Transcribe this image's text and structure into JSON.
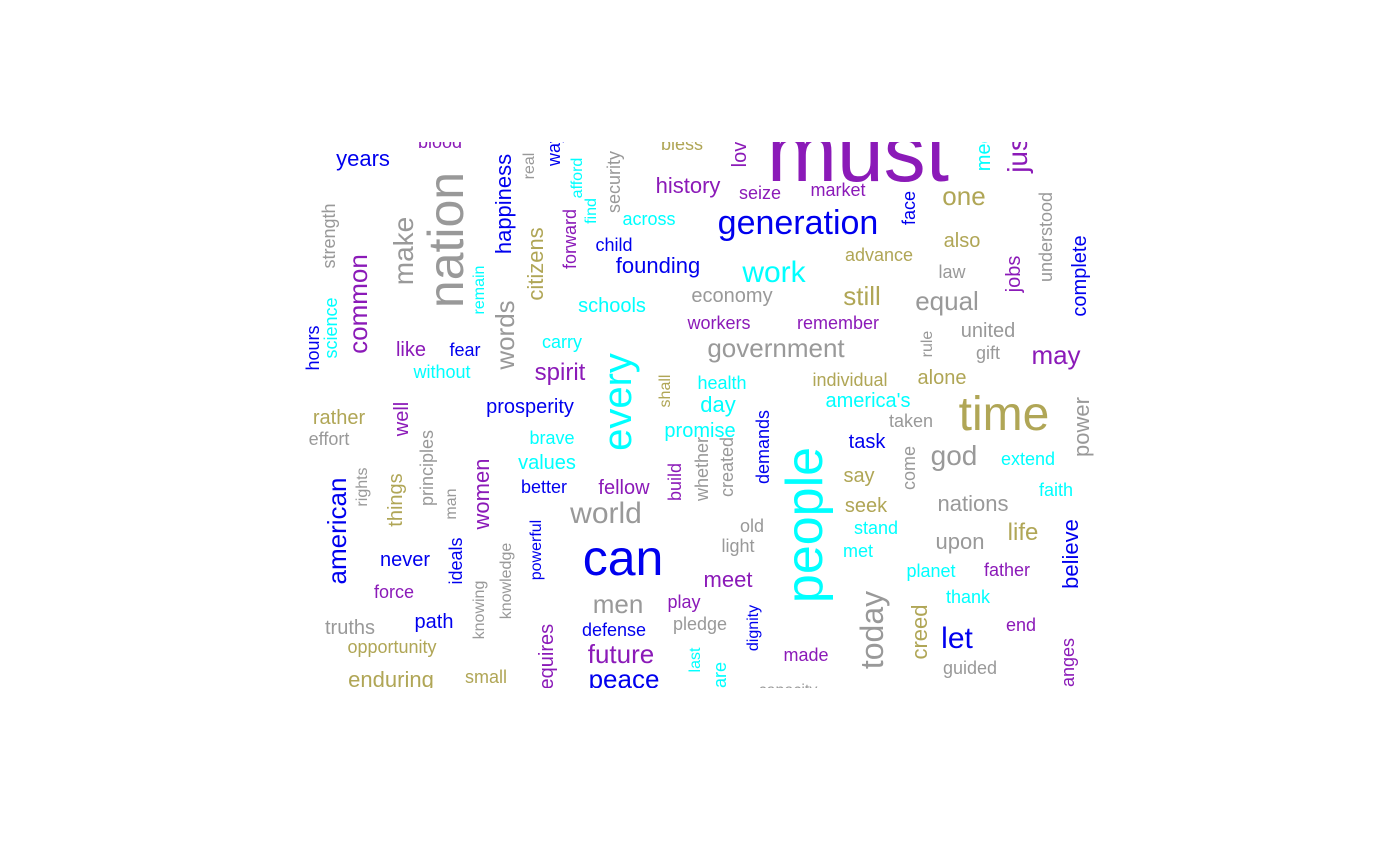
{
  "colors": {
    "blue": "#0000ee",
    "purple": "#8b1ab8",
    "cyan": "#00ffff",
    "olive": "#b0a656",
    "gray": "#999999"
  },
  "words": [
    {
      "text": "must",
      "color": "purple",
      "rotated": false
    },
    {
      "text": "can",
      "color": "blue",
      "rotated": false
    },
    {
      "text": "people",
      "color": "cyan",
      "rotated": true
    },
    {
      "text": "nation",
      "color": "gray",
      "rotated": true
    },
    {
      "text": "time",
      "color": "olive",
      "rotated": false
    },
    {
      "text": "every",
      "color": "cyan",
      "rotated": true
    },
    {
      "text": "generation",
      "color": "blue",
      "rotated": false
    },
    {
      "text": "work",
      "color": "cyan",
      "rotated": false
    },
    {
      "text": "world",
      "color": "gray",
      "rotated": false
    },
    {
      "text": "government",
      "color": "gray",
      "rotated": false
    },
    {
      "text": "today",
      "color": "gray",
      "rotated": true
    },
    {
      "text": "american",
      "color": "blue",
      "rotated": true
    },
    {
      "text": "make",
      "color": "gray",
      "rotated": true
    },
    {
      "text": "common",
      "color": "purple",
      "rotated": true
    },
    {
      "text": "one",
      "color": "olive",
      "rotated": false
    },
    {
      "text": "god",
      "color": "gray",
      "rotated": false
    },
    {
      "text": "future",
      "color": "purple",
      "rotated": false
    },
    {
      "text": "peace",
      "color": "blue",
      "rotated": false
    },
    {
      "text": "let",
      "color": "blue",
      "rotated": false
    },
    {
      "text": "words",
      "color": "gray",
      "rotated": true
    },
    {
      "text": "still",
      "color": "olive",
      "rotated": false
    },
    {
      "text": "equal",
      "color": "gray",
      "rotated": false
    },
    {
      "text": "may",
      "color": "purple",
      "rotated": false
    },
    {
      "text": "men",
      "color": "gray",
      "rotated": false
    },
    {
      "text": "years",
      "color": "blue",
      "rotated": false
    },
    {
      "text": "happiness",
      "color": "blue",
      "rotated": true
    },
    {
      "text": "citizens",
      "color": "olive",
      "rotated": true
    },
    {
      "text": "women",
      "color": "purple",
      "rotated": true
    },
    {
      "text": "spirit",
      "color": "purple",
      "rotated": false
    },
    {
      "text": "history",
      "color": "purple",
      "rotated": false
    },
    {
      "text": "founding",
      "color": "blue",
      "rotated": false
    },
    {
      "text": "nations",
      "color": "gray",
      "rotated": false
    },
    {
      "text": "life",
      "color": "olive",
      "rotated": false
    },
    {
      "text": "upon",
      "color": "gray",
      "rotated": false
    },
    {
      "text": "power",
      "color": "gray",
      "rotated": true
    },
    {
      "text": "believe",
      "color": "blue",
      "rotated": true
    },
    {
      "text": "complete",
      "color": "blue",
      "rotated": true
    },
    {
      "text": "things",
      "color": "olive",
      "rotated": true
    },
    {
      "text": "creed",
      "color": "olive",
      "rotated": true
    },
    {
      "text": "enduring",
      "color": "olive",
      "rotated": false
    },
    {
      "text": "meet",
      "color": "purple",
      "rotated": false
    },
    {
      "text": "day",
      "color": "cyan",
      "rotated": false
    },
    {
      "text": "prosperity",
      "color": "blue",
      "rotated": false
    },
    {
      "text": "promise",
      "color": "cyan",
      "rotated": false
    },
    {
      "text": "values",
      "color": "cyan",
      "rotated": false
    },
    {
      "text": "fellow",
      "color": "purple",
      "rotated": false
    },
    {
      "text": "america's",
      "color": "cyan",
      "rotated": false
    },
    {
      "text": "jobs",
      "color": "purple",
      "rotated": true
    },
    {
      "text": "well",
      "color": "purple",
      "rotated": true
    },
    {
      "text": "rather",
      "color": "olive",
      "rotated": false
    },
    {
      "text": "schools",
      "color": "cyan",
      "rotated": false
    },
    {
      "text": "also",
      "color": "olive",
      "rotated": false
    },
    {
      "text": "alone",
      "color": "olive",
      "rotated": false
    },
    {
      "text": "never",
      "color": "blue",
      "rotated": false
    },
    {
      "text": "path",
      "color": "blue",
      "rotated": false
    },
    {
      "text": "seek",
      "color": "olive",
      "rotated": false
    },
    {
      "text": "say",
      "color": "olive",
      "rotated": false
    },
    {
      "text": "task",
      "color": "blue",
      "rotated": false
    },
    {
      "text": "united",
      "color": "gray",
      "rotated": false
    },
    {
      "text": "economy",
      "color": "gray",
      "rotated": false
    },
    {
      "text": "advance",
      "color": "olive",
      "rotated": false
    },
    {
      "text": "across",
      "color": "cyan",
      "rotated": false
    },
    {
      "text": "carry",
      "color": "cyan",
      "rotated": false
    },
    {
      "text": "like",
      "color": "purple",
      "rotated": false
    },
    {
      "text": "fear",
      "color": "blue",
      "rotated": false
    },
    {
      "text": "without",
      "color": "cyan",
      "rotated": false
    },
    {
      "text": "brave",
      "color": "cyan",
      "rotated": false
    },
    {
      "text": "better",
      "color": "blue",
      "rotated": false
    },
    {
      "text": "health",
      "color": "cyan",
      "rotated": false
    },
    {
      "text": "individual",
      "color": "olive",
      "rotated": false
    },
    {
      "text": "taken",
      "color": "gray",
      "rotated": false
    },
    {
      "text": "extend",
      "color": "cyan",
      "rotated": false
    },
    {
      "text": "faith",
      "color": "cyan",
      "rotated": false
    },
    {
      "text": "stand",
      "color": "cyan",
      "rotated": false
    },
    {
      "text": "met",
      "color": "cyan",
      "rotated": false
    },
    {
      "text": "planet",
      "color": "cyan",
      "rotated": false
    },
    {
      "text": "father",
      "color": "purple",
      "rotated": false
    },
    {
      "text": "thank",
      "color": "cyan",
      "rotated": false
    },
    {
      "text": "end",
      "color": "purple",
      "rotated": false
    },
    {
      "text": "guided",
      "color": "gray",
      "rotated": false
    },
    {
      "text": "made",
      "color": "purple",
      "rotated": false
    },
    {
      "text": "play",
      "color": "purple",
      "rotated": false
    },
    {
      "text": "pledge",
      "color": "gray",
      "rotated": false
    },
    {
      "text": "defense",
      "color": "blue",
      "rotated": false
    },
    {
      "text": "force",
      "color": "purple",
      "rotated": false
    },
    {
      "text": "truths",
      "color": "gray",
      "rotated": false
    },
    {
      "text": "opportunity",
      "color": "olive",
      "rotated": false
    },
    {
      "text": "small",
      "color": "olive",
      "rotated": false
    },
    {
      "text": "effort",
      "color": "gray",
      "rotated": false
    },
    {
      "text": "workers",
      "color": "purple",
      "rotated": false
    },
    {
      "text": "remember",
      "color": "purple",
      "rotated": false
    },
    {
      "text": "seize",
      "color": "purple",
      "rotated": false
    },
    {
      "text": "market",
      "color": "purple",
      "rotated": false
    },
    {
      "text": "child",
      "color": "blue",
      "rotated": false
    },
    {
      "text": "law",
      "color": "gray",
      "rotated": false
    },
    {
      "text": "gift",
      "color": "gray",
      "rotated": false
    },
    {
      "text": "old",
      "color": "gray",
      "rotated": false
    },
    {
      "text": "light",
      "color": "gray",
      "rotated": false
    },
    {
      "text": "bless",
      "color": "olive",
      "rotated": false
    },
    {
      "text": "blood",
      "color": "purple",
      "rotated": false
    },
    {
      "text": "strength",
      "color": "gray",
      "rotated": true
    },
    {
      "text": "science",
      "color": "cyan",
      "rotated": true
    },
    {
      "text": "hours",
      "color": "blue",
      "rotated": true
    },
    {
      "text": "remain",
      "color": "cyan",
      "rotated": true
    },
    {
      "text": "forward",
      "color": "purple",
      "rotated": true
    },
    {
      "text": "find",
      "color": "cyan",
      "rotated": true
    },
    {
      "text": "real",
      "color": "gray",
      "rotated": true
    },
    {
      "text": "face",
      "color": "blue",
      "rotated": true
    },
    {
      "text": "understood",
      "color": "gray",
      "rotated": true
    },
    {
      "text": "rule",
      "color": "gray",
      "rotated": true
    },
    {
      "text": "shall",
      "color": "olive",
      "rotated": true
    },
    {
      "text": "demands",
      "color": "blue",
      "rotated": true
    },
    {
      "text": "build",
      "color": "purple",
      "rotated": true
    },
    {
      "text": "whether",
      "color": "gray",
      "rotated": true
    },
    {
      "text": "created",
      "color": "gray",
      "rotated": true
    },
    {
      "text": "come",
      "color": "gray",
      "rotated": true
    },
    {
      "text": "rights",
      "color": "gray",
      "rotated": true
    },
    {
      "text": "principles",
      "color": "gray",
      "rotated": true
    },
    {
      "text": "man",
      "color": "gray",
      "rotated": true
    },
    {
      "text": "ideals",
      "color": "blue",
      "rotated": true
    },
    {
      "text": "knowing",
      "color": "gray",
      "rotated": true
    },
    {
      "text": "knowledge",
      "color": "gray",
      "rotated": true
    },
    {
      "text": "powerful",
      "color": "blue",
      "rotated": true
    },
    {
      "text": "dignity",
      "color": "blue",
      "rotated": true
    },
    {
      "text": "last",
      "color": "cyan",
      "rotated": true
    },
    {
      "text": "requires",
      "color": "purple",
      "rotated": true
    },
    {
      "text": "are",
      "color": "cyan",
      "rotated": true
    },
    {
      "text": "changes",
      "color": "purple",
      "rotated": true
    },
    {
      "text": "capacity",
      "color": "gray",
      "rotated": false
    },
    {
      "text": "security",
      "color": "gray",
      "rotated": true
    },
    {
      "text": "afford",
      "color": "cyan",
      "rotated": true
    },
    {
      "text": "way",
      "color": "blue",
      "rotated": true
    },
    {
      "text": "love",
      "color": "purple",
      "rotated": true
    },
    {
      "text": "meet",
      "color": "cyan",
      "rotated": true
    },
    {
      "text": "just",
      "color": "purple",
      "rotated": true
    }
  ]
}
